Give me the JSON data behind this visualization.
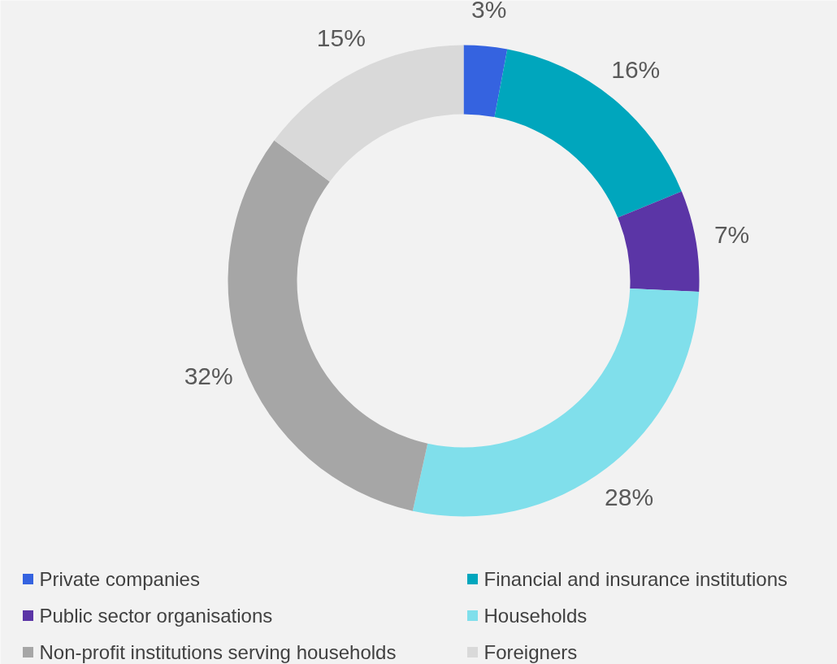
{
  "chart_data": {
    "type": "donut",
    "categories": [
      "Private companies",
      "Financial and insurance institutions",
      "Public sector organisations",
      "Households",
      "Non-profit institutions serving households",
      "Foreigners"
    ],
    "values": [
      3,
      16,
      7,
      28,
      32,
      15
    ],
    "colors": [
      "#3563e0",
      "#00a6bd",
      "#5b35a6",
      "#80dfeb",
      "#a6a6a6",
      "#d9d9d9"
    ],
    "value_labels": [
      "3%",
      "16%",
      "7%",
      "28%",
      "32%",
      "15%"
    ],
    "legend": "bottom"
  }
}
